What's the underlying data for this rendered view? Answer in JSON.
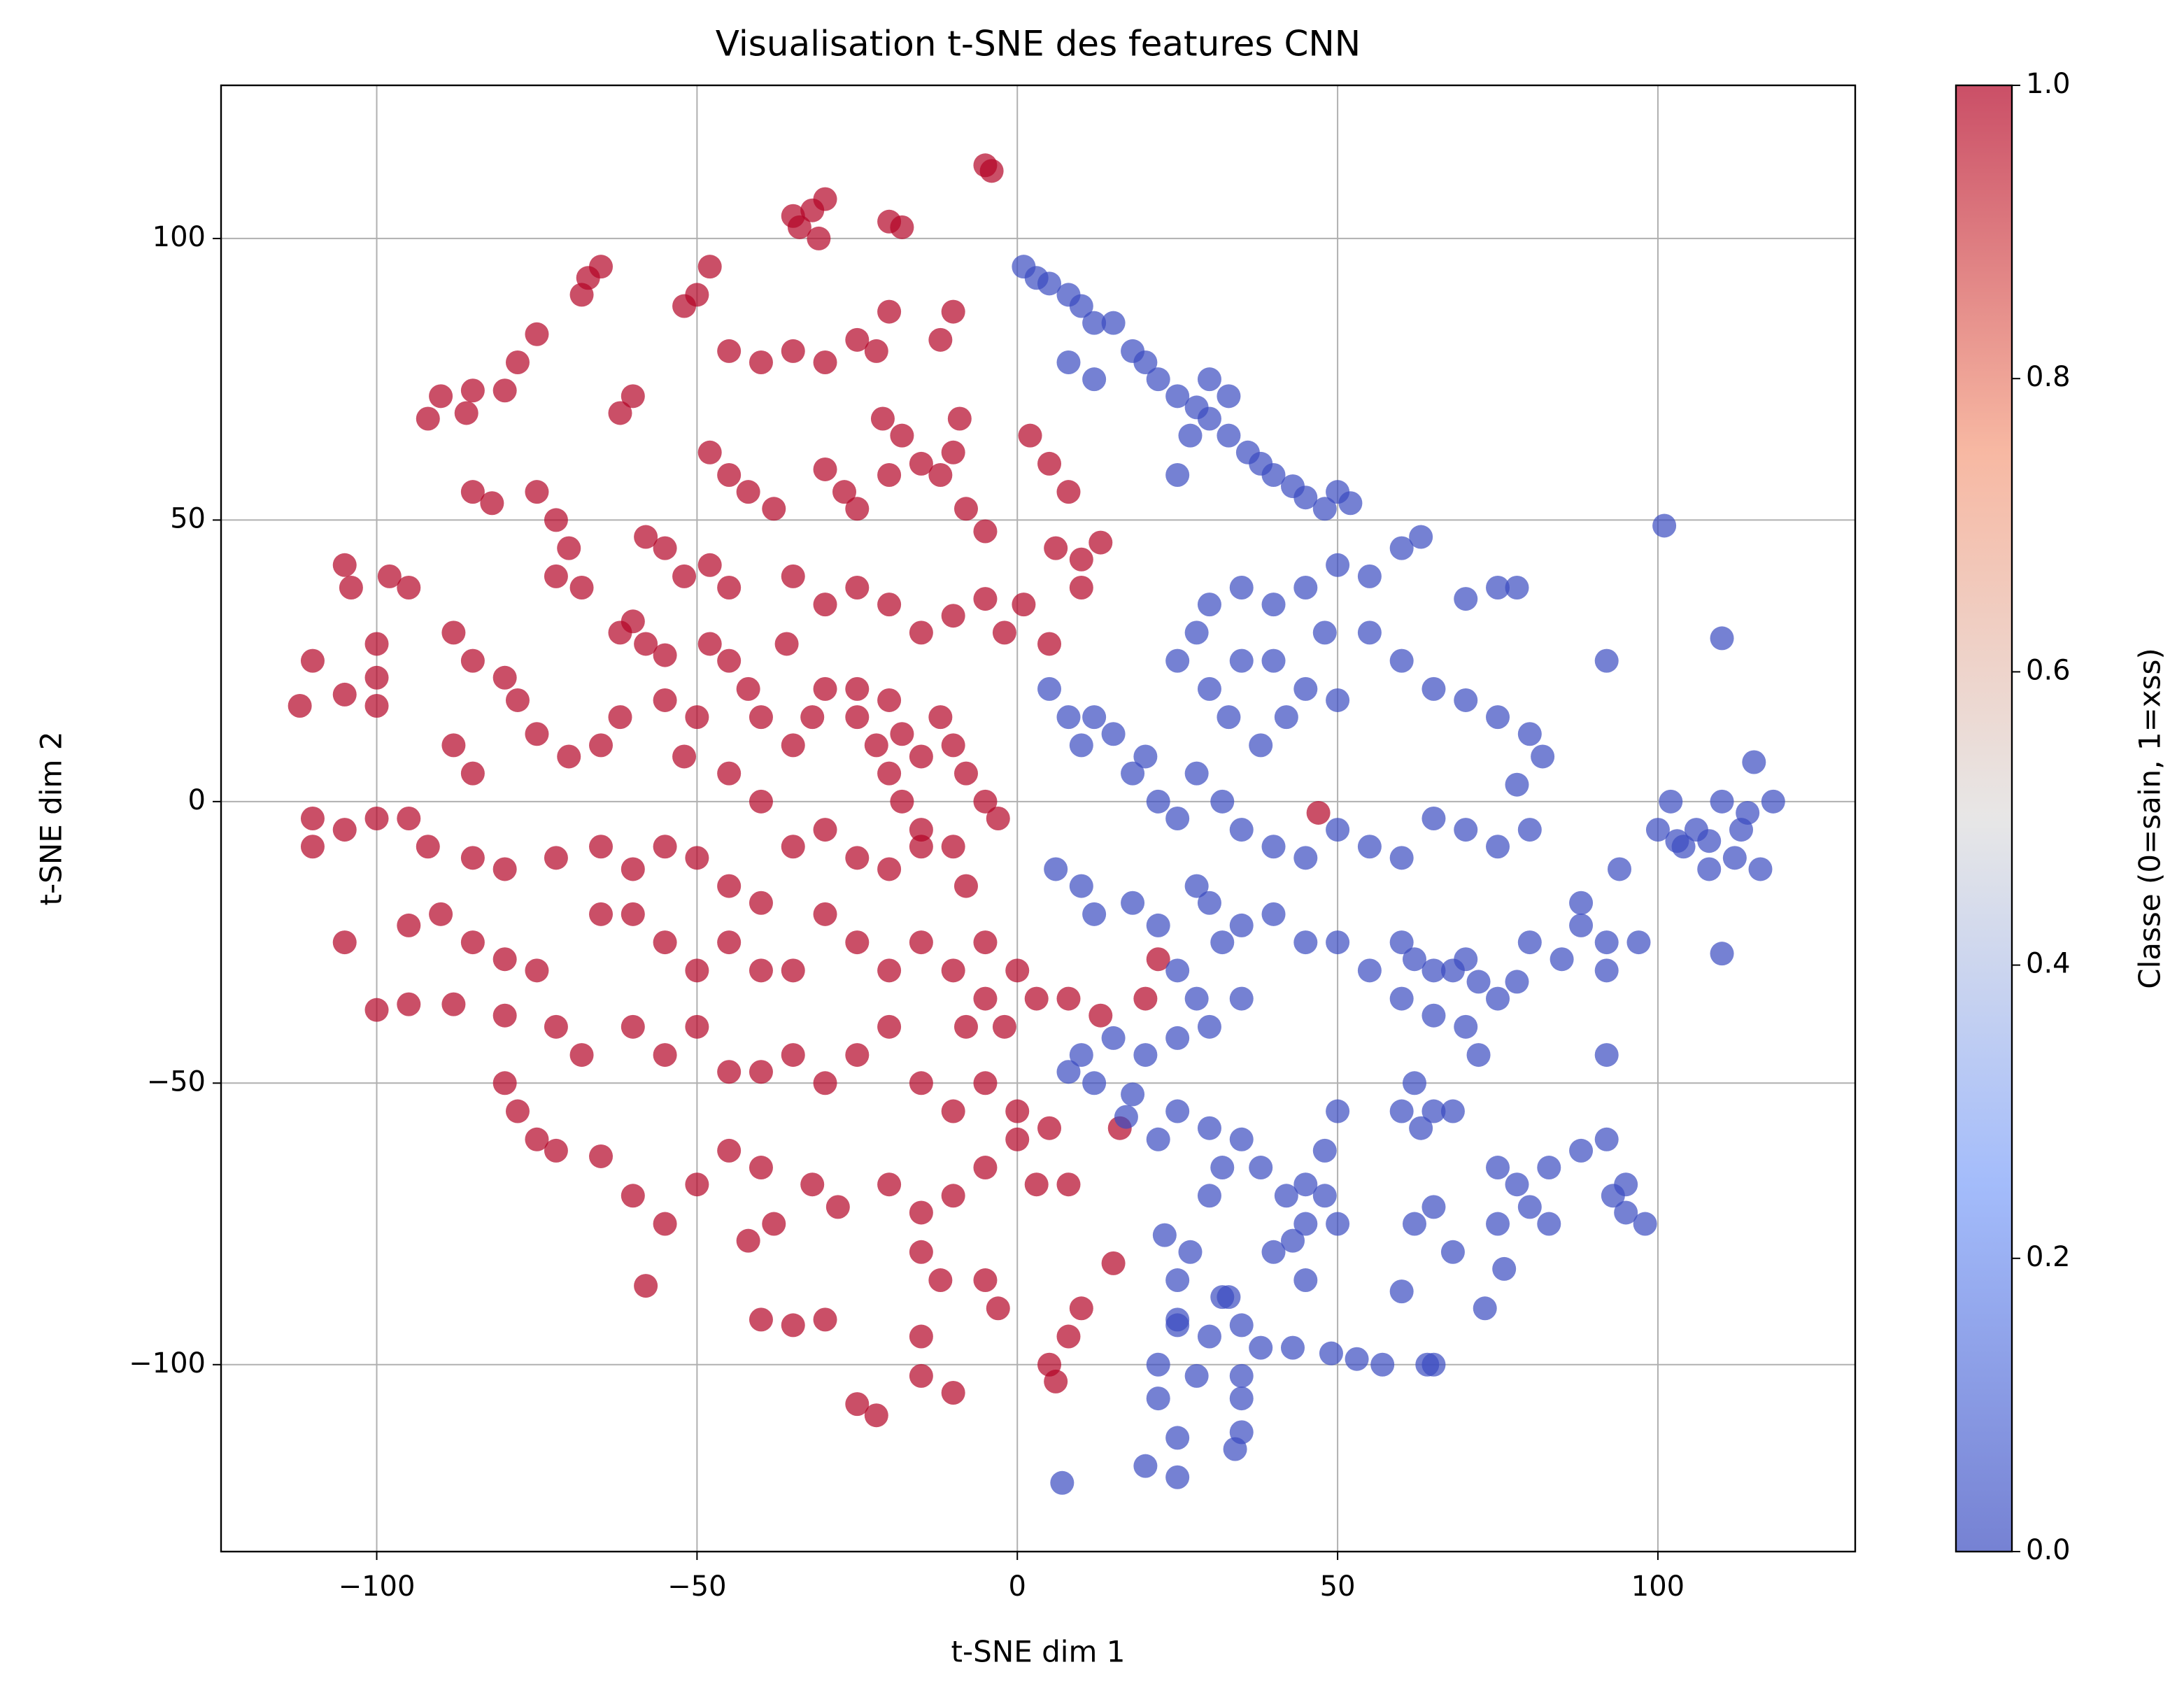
{
  "chart_data": {
    "type": "scatter",
    "title": "Visualisation t-SNE des features CNN",
    "x_label": "t-SNE dim 1",
    "y_label": "t-SNE dim 2",
    "colorbar_label": "Classe (0=sain, 1=xss)",
    "colormap": "coolwarm",
    "clim": [
      0,
      1
    ],
    "cticks": [
      {
        "value": 0,
        "label": "0.0"
      },
      {
        "value": 0.2,
        "label": "0.2"
      },
      {
        "value": 0.4,
        "label": "0.4"
      },
      {
        "value": 0.6,
        "label": "0.6"
      },
      {
        "value": 0.8,
        "label": "0.8"
      },
      {
        "value": 1,
        "label": "1.0"
      }
    ],
    "xlim": [
      -124.3,
      130.8
    ],
    "ylim": [
      -133.2,
      127.2
    ],
    "xticks": [
      {
        "value": -100,
        "label": "−100"
      },
      {
        "value": -50,
        "label": "−50"
      },
      0,
      50,
      100
    ],
    "yticks": [
      {
        "value": -100,
        "label": "−100"
      },
      {
        "value": -50,
        "label": "−50"
      },
      0,
      50,
      100
    ],
    "grid": true,
    "alpha": 0.7,
    "series": [
      {
        "class": 1,
        "x": [
          -5,
          -4,
          -30,
          -32,
          -34,
          -31,
          -35,
          -20,
          -18,
          -10,
          -12,
          -20,
          -25,
          -22,
          -48,
          -50,
          -52,
          -65,
          -68,
          -67,
          -75,
          -78,
          -80,
          -85,
          -90,
          -92,
          -86,
          -60,
          -62,
          -45,
          -40,
          -35,
          -30,
          -21,
          -18,
          -15,
          -10,
          -9,
          -48,
          -45,
          -42,
          -38,
          -30,
          -27,
          -25,
          -20,
          -12,
          -8,
          -5,
          2,
          5,
          8,
          6,
          10,
          13,
          -85,
          -82,
          -75,
          -72,
          -70,
          -72,
          -68,
          -58,
          -55,
          -52,
          -48,
          -45,
          -35,
          -30,
          -25,
          -20,
          -15,
          -10,
          -5,
          -2,
          1,
          5,
          10,
          -105,
          -104,
          -98,
          -95,
          -100,
          -100,
          -88,
          -85,
          -60,
          -58,
          -55,
          -62,
          -48,
          -45,
          -42,
          -40,
          -36,
          -50,
          -110,
          -112,
          -105,
          -100,
          -88,
          -85,
          -80,
          -78,
          -75,
          -70,
          -65,
          -62,
          -55,
          -52,
          -45,
          -40,
          -35,
          -32,
          -30,
          -25,
          -22,
          -20,
          -18,
          -15,
          -12,
          -10,
          -8,
          -5,
          -3,
          -25,
          -20,
          -18,
          -15,
          -110,
          -105,
          -100,
          -95,
          -92,
          -110,
          -85,
          -80,
          -72,
          -65,
          -60,
          -55,
          -50,
          -45,
          -40,
          -35,
          -30,
          -25,
          -20,
          -15,
          -10,
          -8,
          -105,
          -95,
          -90,
          -85,
          -80,
          -75,
          -65,
          -60,
          -55,
          -50,
          -45,
          -40,
          -35,
          -30,
          -25,
          -20,
          -15,
          -10,
          -5,
          0,
          -5,
          -8,
          -2,
          3,
          8,
          13,
          22,
          20,
          -100,
          -95,
          -88,
          -80,
          -72,
          -68,
          -60,
          -55,
          -50,
          -45,
          -40,
          -35,
          -30,
          -25,
          -20,
          -15,
          -10,
          -5,
          0,
          5,
          16,
          -80,
          -78,
          -72,
          -75,
          -65,
          -60,
          -55,
          -50,
          -45,
          -40,
          -38,
          -32,
          -28,
          -20,
          -15,
          -10,
          -5,
          0,
          3,
          8,
          -58,
          -42,
          -35,
          -40,
          -30,
          -15,
          -12,
          -5,
          -3,
          15,
          10,
          8,
          5,
          6,
          -25,
          -22,
          -15,
          -10,
          -15,
          47
        ],
        "values": [
          113,
          112,
          107,
          105,
          102,
          100,
          104,
          103,
          102,
          87,
          82,
          87,
          82,
          80,
          95,
          90,
          88,
          95,
          90,
          93,
          83,
          78,
          73,
          73,
          72,
          68,
          69,
          72,
          69,
          80,
          78,
          80,
          78,
          68,
          65,
          60,
          62,
          68,
          62,
          58,
          55,
          52,
          59,
          55,
          52,
          58,
          58,
          52,
          48,
          65,
          60,
          55,
          45,
          43,
          46,
          55,
          53,
          55,
          50,
          45,
          40,
          38,
          47,
          45,
          40,
          42,
          38,
          40,
          35,
          38,
          35,
          30,
          33,
          36,
          30,
          35,
          28,
          38,
          42,
          38,
          40,
          38,
          28,
          22,
          30,
          25,
          32,
          28,
          26,
          30,
          28,
          25,
          20,
          15,
          28,
          15,
          25,
          17,
          19,
          17,
          10,
          5,
          22,
          18,
          12,
          8,
          10,
          15,
          18,
          8,
          5,
          0,
          10,
          15,
          20,
          15,
          10,
          5,
          0,
          8,
          15,
          10,
          5,
          0,
          -3,
          20,
          18,
          12,
          -5,
          -3,
          -5,
          -3,
          -3,
          -8,
          -8,
          -10,
          -12,
          -10,
          -8,
          -12,
          -8,
          -10,
          -15,
          -18,
          -8,
          -5,
          -10,
          -12,
          -8,
          -8,
          -15,
          -25,
          -22,
          -20,
          -25,
          -28,
          -30,
          -20,
          -20,
          -25,
          -30,
          -25,
          -30,
          -30,
          -20,
          -25,
          -30,
          -25,
          -30,
          -35,
          -30,
          -25,
          -40,
          -40,
          -35,
          -35,
          -38,
          -28,
          -35,
          -37,
          -36,
          -36,
          -38,
          -40,
          -45,
          -40,
          -45,
          -40,
          -48,
          -48,
          -45,
          -50,
          -45,
          -40,
          -50,
          -55,
          -50,
          -55,
          -58,
          -58,
          -50,
          -55,
          -62,
          -60,
          -63,
          -70,
          -75,
          -68,
          -62,
          -65,
          -75,
          -68,
          -72,
          -68,
          -73,
          -70,
          -65,
          -60,
          -68,
          -68,
          -86,
          -78,
          -93,
          -92,
          -92,
          -80,
          -85,
          -85,
          -90,
          -82,
          -90,
          -95,
          -100,
          -103,
          -107,
          -109,
          -102,
          -105,
          -95,
          -2
        ]
      },
      {
        "class": 0,
        "x": [
          1,
          3,
          5,
          8,
          10,
          12,
          15,
          18,
          20,
          22,
          25,
          28,
          30,
          33,
          36,
          38,
          40,
          43,
          45,
          48,
          50,
          52,
          8,
          12,
          30,
          33,
          27,
          25,
          63,
          60,
          55,
          50,
          45,
          40,
          35,
          30,
          28,
          25,
          30,
          35,
          40,
          45,
          50,
          33,
          38,
          42,
          48,
          55,
          60,
          65,
          70,
          75,
          80,
          82,
          78,
          75,
          70,
          92,
          110,
          101,
          5,
          8,
          12,
          10,
          15,
          18,
          20,
          22,
          25,
          28,
          32,
          35,
          40,
          45,
          50,
          55,
          60,
          65,
          70,
          75,
          80,
          78,
          28,
          30,
          32,
          35,
          40,
          45,
          50,
          55,
          60,
          62,
          65,
          68,
          70,
          72,
          75,
          70,
          65,
          60,
          78,
          72,
          62,
          6,
          10,
          12,
          18,
          22,
          25,
          28,
          30,
          35,
          25,
          20,
          15,
          10,
          8,
          12,
          18,
          25,
          30,
          22,
          17,
          30,
          32,
          35,
          38,
          42,
          45,
          48,
          48,
          50,
          50,
          45,
          43,
          40,
          60,
          63,
          65,
          68,
          65,
          62,
          68,
          75,
          75,
          78,
          80,
          83,
          83,
          88,
          92,
          95,
          98,
          97,
          92,
          88,
          85,
          92,
          94,
          88,
          80,
          92,
          110,
          102,
          106,
          104,
          100,
          110,
          114,
          118,
          113,
          116,
          108,
          112,
          108,
          103,
          115,
          93,
          95,
          60,
          57,
          65,
          49,
          53,
          43,
          38,
          35,
          35,
          30,
          28,
          35,
          34,
          25,
          20,
          25,
          7,
          22,
          22,
          25,
          25,
          23,
          27,
          32,
          35,
          45,
          64,
          73,
          76,
          33,
          25
        ],
        "values": [
          95,
          93,
          92,
          90,
          88,
          85,
          85,
          80,
          78,
          75,
          72,
          70,
          68,
          65,
          62,
          60,
          58,
          56,
          54,
          52,
          55,
          53,
          78,
          75,
          75,
          72,
          65,
          58,
          47,
          45,
          40,
          42,
          38,
          35,
          38,
          35,
          30,
          25,
          20,
          25,
          25,
          20,
          18,
          15,
          10,
          15,
          30,
          30,
          25,
          20,
          18,
          15,
          12,
          8,
          38,
          38,
          36,
          25,
          29,
          49,
          20,
          15,
          15,
          10,
          12,
          5,
          8,
          0,
          -3,
          5,
          0,
          -5,
          -8,
          -10,
          -5,
          -8,
          -10,
          -3,
          -5,
          -8,
          -5,
          3,
          -15,
          -18,
          -25,
          -22,
          -20,
          -25,
          -25,
          -30,
          -25,
          -28,
          -30,
          -30,
          -28,
          -32,
          -35,
          -40,
          -38,
          -35,
          -32,
          -45,
          -50,
          -12,
          -15,
          -20,
          -18,
          -22,
          -30,
          -35,
          -40,
          -35,
          -42,
          -45,
          -42,
          -45,
          -48,
          -50,
          -52,
          -55,
          -58,
          -60,
          -56,
          -70,
          -65,
          -60,
          -65,
          -70,
          -68,
          -70,
          -62,
          -55,
          -75,
          -75,
          -78,
          -80,
          -55,
          -58,
          -55,
          -55,
          -72,
          -75,
          -80,
          -75,
          -65,
          -68,
          -72,
          -75,
          -65,
          -62,
          -60,
          -68,
          -75,
          -25,
          -25,
          -22,
          -28,
          -30,
          -12,
          -18,
          -25,
          -45,
          -27,
          0,
          -5,
          -8,
          -5,
          0,
          -2,
          0,
          -5,
          -12,
          -12,
          -10,
          -7,
          -7,
          7,
          -70,
          -73,
          -87,
          -100,
          -100,
          -98,
          -99,
          -97,
          -97,
          -102,
          -106,
          -95,
          -102,
          -112,
          -115,
          -113,
          -118,
          -120,
          -121,
          -100,
          -106,
          -92,
          -85,
          -77,
          -80,
          -88,
          -93,
          -85,
          -100,
          -90,
          -83,
          -88,
          -93
        ]
      }
    ]
  }
}
